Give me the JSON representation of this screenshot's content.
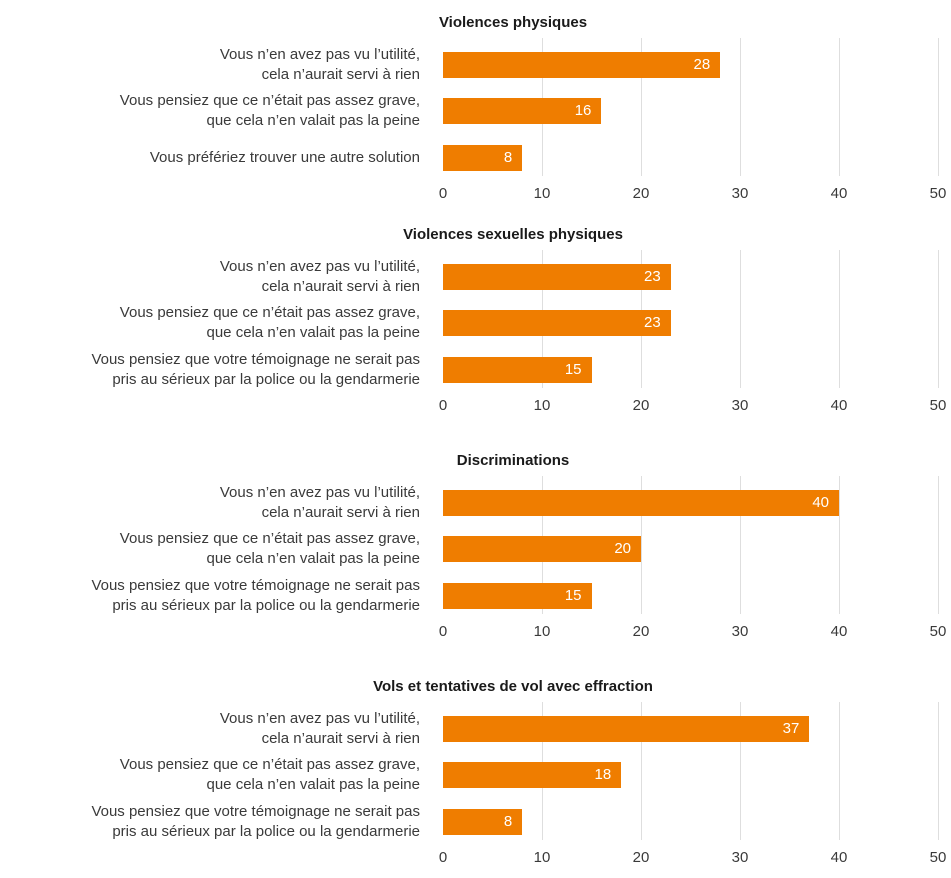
{
  "chart_data": [
    {
      "type": "bar",
      "orientation": "horizontal",
      "title": "Violences physiques",
      "categories": [
        "Vous n’en avez pas vu l’utilité,\ncela n’aurait servi à rien",
        "Vous pensiez que ce n’était pas assez grave,\nque cela n’en valait pas la peine",
        "Vous préfériez trouver une autre solution"
      ],
      "values": [
        28,
        16,
        8
      ],
      "value_labels": [
        "28",
        "16",
        "8"
      ],
      "xlim": [
        0,
        50
      ],
      "ticks": [
        "0",
        "10",
        "20",
        "30",
        "40",
        "50"
      ],
      "grid": true,
      "color": "#ef7d00"
    },
    {
      "type": "bar",
      "orientation": "horizontal",
      "title": "Violences sexuelles physiques",
      "categories": [
        "Vous n’en avez pas vu l’utilité,\ncela n’aurait servi à rien",
        "Vous pensiez que ce n’était pas assez grave,\nque cela n’en valait pas la peine",
        "Vous pensiez que votre témoignage ne serait pas\npris au sérieux par la police ou la gendarmerie"
      ],
      "values": [
        23,
        23,
        15
      ],
      "value_labels": [
        "23",
        "23",
        "15"
      ],
      "xlim": [
        0,
        50
      ],
      "ticks": [
        "0",
        "10",
        "20",
        "30",
        "40",
        "50"
      ],
      "grid": true,
      "color": "#ef7d00"
    },
    {
      "type": "bar",
      "orientation": "horizontal",
      "title": "Discriminations",
      "categories": [
        "Vous n’en avez pas vu l’utilité,\ncela n’aurait servi à rien",
        "Vous pensiez que ce n’était pas assez grave,\nque cela n’en valait pas la peine",
        "Vous pensiez que votre témoignage ne serait pas\npris au sérieux par la police ou la gendarmerie"
      ],
      "values": [
        40,
        20,
        15
      ],
      "value_labels": [
        "40",
        "20",
        "15"
      ],
      "xlim": [
        0,
        50
      ],
      "ticks": [
        "0",
        "10",
        "20",
        "30",
        "40",
        "50"
      ],
      "grid": true,
      "color": "#ef7d00"
    },
    {
      "type": "bar",
      "orientation": "horizontal",
      "title": "Vols et tentatives de vol avec effraction",
      "categories": [
        "Vous n’en avez pas vu l’utilité,\ncela n’aurait servi à rien",
        "Vous pensiez que ce n’était pas assez grave,\nque cela n’en valait pas la peine",
        "Vous pensiez que votre témoignage ne serait pas\npris au sérieux par la police ou la gendarmerie"
      ],
      "values": [
        37,
        18,
        8
      ],
      "value_labels": [
        "37",
        "18",
        "8"
      ],
      "xlim": [
        0,
        50
      ],
      "ticks": [
        "0",
        "10",
        "20",
        "30",
        "40",
        "50"
      ],
      "grid": true,
      "color": "#ef7d00"
    }
  ]
}
